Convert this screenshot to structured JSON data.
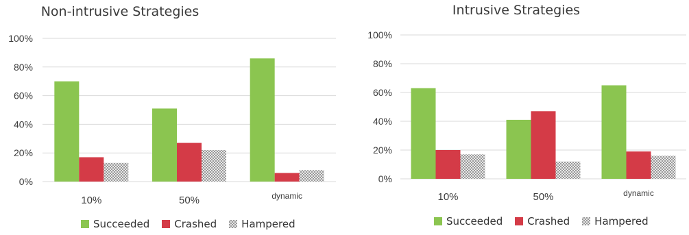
{
  "colors": {
    "succeeded": "#8bc550",
    "crashed": "#d43b47",
    "hampered": "#c8c8c8",
    "grid": "#d9d9d9",
    "axis_text": "#3c3c3c"
  },
  "legend": {
    "succeeded": "Succeeded",
    "crashed": "Crashed",
    "hampered": "Hampered"
  },
  "chart_data": [
    {
      "type": "bar",
      "title": "Non-intrusive Strategies",
      "categories": [
        "10%",
        "50%",
        "dynamic"
      ],
      "series": [
        {
          "name": "Succeeded",
          "values": [
            70,
            51,
            86
          ]
        },
        {
          "name": "Crashed",
          "values": [
            17,
            27,
            6
          ]
        },
        {
          "name": "Hampered",
          "values": [
            13,
            22,
            8
          ]
        }
      ],
      "y_ticks": [
        "0%",
        "20%",
        "40%",
        "60%",
        "80%",
        "100%"
      ],
      "ylim": [
        0,
        100
      ],
      "grid": true,
      "legend_position": "bottom"
    },
    {
      "type": "bar",
      "title": "Intrusive Strategies",
      "categories": [
        "10%",
        "50%",
        "dynamic"
      ],
      "series": [
        {
          "name": "Succeeded",
          "values": [
            63,
            41,
            65
          ]
        },
        {
          "name": "Crashed",
          "values": [
            20,
            47,
            19
          ]
        },
        {
          "name": "Hampered",
          "values": [
            17,
            12,
            16
          ]
        }
      ],
      "y_ticks": [
        "0%",
        "20%",
        "40%",
        "60%",
        "80%",
        "100%"
      ],
      "ylim": [
        0,
        100
      ],
      "grid": true,
      "legend_position": "bottom"
    }
  ]
}
